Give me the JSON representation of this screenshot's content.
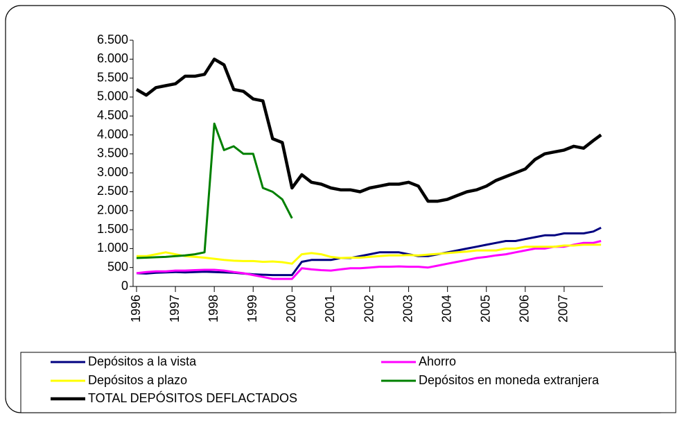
{
  "chart_data": {
    "type": "line",
    "x": [
      1996,
      1996.25,
      1996.5,
      1996.75,
      1997,
      1997.25,
      1997.5,
      1997.75,
      1998,
      1998.25,
      1998.5,
      1998.75,
      1999,
      1999.25,
      1999.5,
      1999.75,
      2000,
      2000.25,
      2000.5,
      2000.75,
      2001,
      2001.25,
      2001.5,
      2001.75,
      2002,
      2002.25,
      2002.5,
      2002.75,
      2003,
      2003.25,
      2003.5,
      2003.75,
      2004,
      2004.25,
      2004.5,
      2004.75,
      2005,
      2005.25,
      2005.5,
      2005.75,
      2006,
      2006.25,
      2006.5,
      2006.75,
      2007,
      2007.25,
      2007.5,
      2007.75,
      2007.95
    ],
    "series": [
      {
        "name": "Depósitos a la vista",
        "color": "#000080",
        "values": [
          350,
          340,
          360,
          370,
          380,
          370,
          380,
          390,
          380,
          370,
          360,
          340,
          320,
          310,
          300,
          300,
          300,
          650,
          700,
          700,
          700,
          750,
          750,
          800,
          850,
          900,
          900,
          900,
          850,
          800,
          800,
          850,
          900,
          950,
          1000,
          1050,
          1100,
          1150,
          1200,
          1200,
          1250,
          1300,
          1350,
          1350,
          1400,
          1400,
          1400,
          1450,
          1550
        ]
      },
      {
        "name": "Ahorro",
        "color": "#ff00ff",
        "values": [
          350,
          380,
          400,
          400,
          420,
          420,
          430,
          440,
          440,
          420,
          380,
          350,
          300,
          250,
          200,
          200,
          200,
          480,
          450,
          430,
          420,
          450,
          480,
          480,
          500,
          520,
          520,
          530,
          520,
          520,
          500,
          550,
          600,
          650,
          700,
          750,
          780,
          820,
          850,
          900,
          950,
          1000,
          1000,
          1050,
          1050,
          1100,
          1150,
          1150,
          1200
        ]
      },
      {
        "name": "Depósitos a plazo",
        "color": "#ffff00",
        "values": [
          800,
          800,
          850,
          900,
          850,
          800,
          780,
          760,
          730,
          700,
          680,
          670,
          670,
          650,
          660,
          640,
          600,
          850,
          880,
          850,
          780,
          750,
          760,
          760,
          780,
          800,
          820,
          820,
          830,
          820,
          840,
          860,
          880,
          900,
          920,
          950,
          950,
          950,
          1000,
          1000,
          1050,
          1050,
          1050,
          1050,
          1080,
          1080,
          1100,
          1100,
          1100
        ]
      },
      {
        "name": "Depósitos en moneda extranjera",
        "color": "#008000",
        "values": [
          750,
          760,
          770,
          780,
          800,
          820,
          850,
          900,
          4300,
          3600,
          3700,
          3500,
          3500,
          2600,
          2500,
          2300,
          1800,
          null,
          null,
          null,
          null,
          null,
          null,
          null,
          null,
          null,
          null,
          null,
          null,
          null,
          null,
          null,
          null,
          null,
          null,
          null,
          null,
          null,
          null,
          null,
          null,
          null,
          null,
          null,
          null,
          null,
          null,
          null,
          null
        ]
      },
      {
        "name": "TOTAL DEPÓSITOS DEFLACTADOS",
        "color": "#000000",
        "values": [
          5200,
          5050,
          5250,
          5300,
          5350,
          5550,
          5550,
          5600,
          6000,
          5850,
          5200,
          5150,
          4950,
          4900,
          3900,
          3800,
          2600,
          2950,
          2750,
          2700,
          2600,
          2550,
          2550,
          2500,
          2600,
          2650,
          2700,
          2700,
          2750,
          2650,
          2250,
          2250,
          2300,
          2400,
          2500,
          2550,
          2650,
          2800,
          2900,
          3000,
          3100,
          3350,
          3500,
          3550,
          3600,
          3700,
          3650,
          3850,
          4000
        ]
      }
    ],
    "xlim": [
      1996,
      2008
    ],
    "xticks": [
      1996,
      1997,
      1998,
      1999,
      2000,
      2001,
      2002,
      2003,
      2004,
      2005,
      2006,
      2007
    ],
    "ylim": [
      0,
      6500
    ],
    "yticks": [
      0,
      {
        "value": 500,
        "label": "500"
      },
      {
        "value": 1000,
        "label": "1.000"
      },
      {
        "value": 1500,
        "label": "1.500"
      },
      {
        "value": 2000,
        "label": "2.000"
      },
      {
        "value": 2500,
        "label": "2.500"
      },
      {
        "value": 3000,
        "label": "3.000"
      },
      {
        "value": 3500,
        "label": "3.500"
      },
      {
        "value": 4000,
        "label": "4.000"
      },
      {
        "value": 4500,
        "label": "4.500"
      },
      {
        "value": 5000,
        "label": "5.000"
      },
      {
        "value": 5500,
        "label": "5.500"
      },
      {
        "value": 6000,
        "label": "6.000"
      },
      {
        "value": 6500,
        "label": "6.500"
      }
    ],
    "legend": "bottom"
  }
}
